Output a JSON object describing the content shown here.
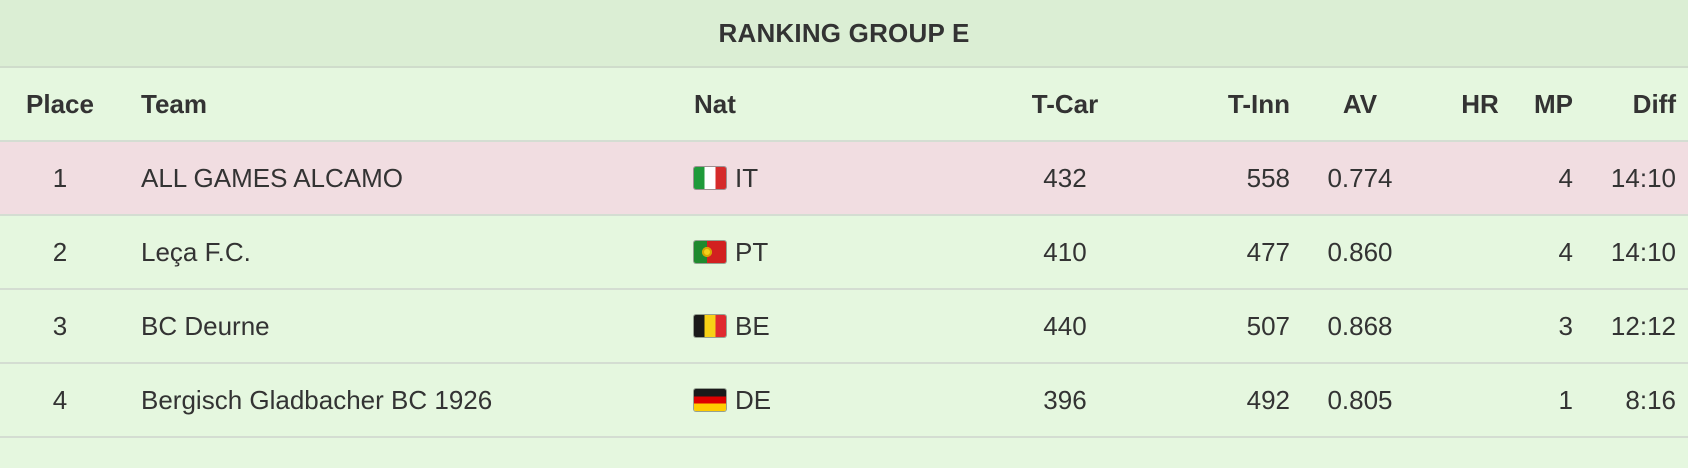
{
  "title": "RANKING GROUP E",
  "columns": {
    "place": "Place",
    "team": "Team",
    "nat": "Nat",
    "tcar": "T-Car",
    "tinn": "T-Inn",
    "av": "AV",
    "hr": "HR",
    "mp": "MP",
    "diff": "Diff"
  },
  "rows": [
    {
      "place": "1",
      "team": "ALL GAMES ALCAMO",
      "flag_icon": "italy-flag-icon",
      "nat": "IT",
      "tcar": "432",
      "tinn": "558",
      "av": "0.774",
      "hr": "",
      "mp": "4",
      "diff": "14:10"
    },
    {
      "place": "2",
      "team": "Leça F.C.",
      "flag_icon": "portugal-flag-icon",
      "nat": "PT",
      "tcar": "410",
      "tinn": "477",
      "av": "0.860",
      "hr": "",
      "mp": "4",
      "diff": "14:10"
    },
    {
      "place": "3",
      "team": "BC Deurne",
      "flag_icon": "belgium-flag-icon",
      "nat": "BE",
      "tcar": "440",
      "tinn": "507",
      "av": "0.868",
      "hr": "",
      "mp": "3",
      "diff": "12:12"
    },
    {
      "place": "4",
      "team": "Bergisch Gladbacher BC 1926",
      "flag_icon": "germany-flag-icon",
      "nat": "DE",
      "tcar": "396",
      "tinn": "492",
      "av": "0.805",
      "hr": "",
      "mp": "1",
      "diff": "8:16"
    }
  ],
  "colors": {
    "background": "#e5f7df",
    "title_background": "#dbeed4",
    "highlight_row": "#f1dde1",
    "text": "#333333"
  }
}
